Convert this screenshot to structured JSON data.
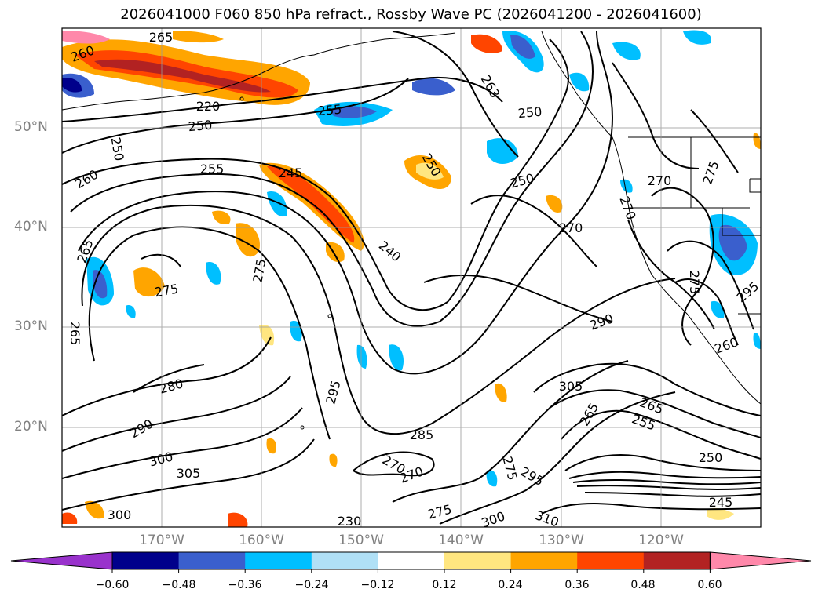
{
  "title": "2026041000 F060 850 hPa refract., Rossby Wave PC (2026041200 - 2026041600)",
  "lat_labels": [
    "50°N",
    "40°N",
    "30°N",
    "20°N"
  ],
  "lon_labels": [
    "170°W",
    "160°W",
    "150°W",
    "140°W",
    "130°W",
    "120°W"
  ],
  "colorbar": {
    "ticks": [
      "−0.60",
      "−0.48",
      "−0.36",
      "−0.24",
      "−0.12",
      "0.12",
      "0.24",
      "0.36",
      "0.48",
      "0.60"
    ],
    "colors": [
      "#9932cc",
      "#00008b",
      "#3a5fcd",
      "#00bfff",
      "#b0e0f6",
      "#ffffff",
      "#ffe680",
      "#ffa500",
      "#ff4500",
      "#b22222",
      "#ff88aa"
    ]
  },
  "contour_labels": [
    "265",
    "260",
    "250",
    "250",
    "260",
    "265",
    "265",
    "255",
    "245",
    "255",
    "250",
    "263",
    "250",
    "250",
    "240",
    "275",
    "275",
    "270",
    "270",
    "270",
    "270",
    "275",
    "280",
    "295",
    "290",
    "300",
    "305",
    "300",
    "285",
    "270",
    "275",
    "275",
    "295",
    "300",
    "310",
    "305",
    "265",
    "265",
    "255",
    "250",
    "245",
    "290",
    "295",
    "260",
    "230",
    "275",
    "220"
  ]
}
